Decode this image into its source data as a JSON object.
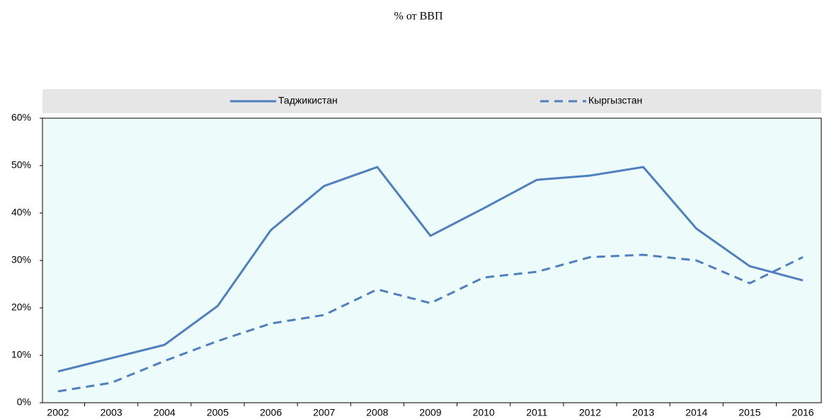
{
  "chart_data": {
    "type": "line",
    "title": "% от ВВП",
    "categories": [
      "2002",
      "2003",
      "2004",
      "2005",
      "2006",
      "2007",
      "2008",
      "2009",
      "2010",
      "2011",
      "2012",
      "2013",
      "2014",
      "2015",
      "2016"
    ],
    "series": [
      {
        "name": "Таджикистан",
        "color": "#4e7fbf",
        "dashed": false,
        "values": [
          6.6,
          9.4,
          12.2,
          20.4,
          36.4,
          45.7,
          49.7,
          35.2,
          41.0,
          47.0,
          47.9,
          49.7,
          36.7,
          28.8,
          25.8
        ]
      },
      {
        "name": "Кыргызстан",
        "color": "#4e7fbf",
        "dashed": true,
        "values": [
          2.4,
          4.2,
          8.8,
          13.0,
          16.7,
          18.5,
          23.9,
          21.0,
          26.4,
          27.6,
          30.7,
          31.2,
          30.0,
          25.2,
          30.7
        ]
      }
    ],
    "ylim": [
      0,
      60
    ],
    "yticks": [
      {
        "value": 0,
        "label": "0%"
      },
      {
        "value": 10,
        "label": "10%"
      },
      {
        "value": 20,
        "label": "20%"
      },
      {
        "value": 30,
        "label": "30%"
      },
      {
        "value": 40,
        "label": "40%"
      },
      {
        "value": 50,
        "label": "50%"
      },
      {
        "value": 60,
        "label": "60%"
      }
    ],
    "legend": "top"
  }
}
